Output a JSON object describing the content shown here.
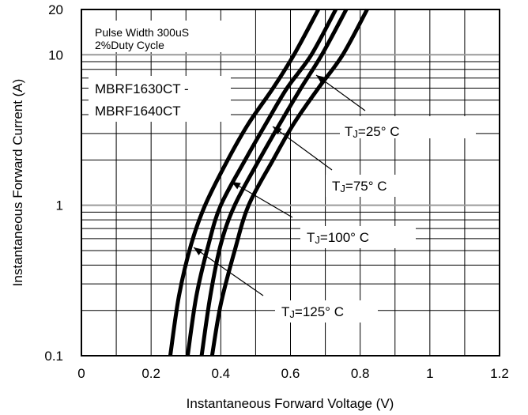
{
  "chart_data": {
    "type": "line",
    "title": "",
    "xlabel": "Instantaneous Forward Voltage (V)",
    "ylabel": "Instantaneous Forward Current (A)",
    "xlim": [
      0,
      1.2
    ],
    "ylim": [
      0.1,
      20
    ],
    "y_scale": "log",
    "grid": true,
    "x_ticks": [
      "0",
      "0.2",
      "0.4",
      "0.6",
      "0.8",
      "1",
      "1.2"
    ],
    "y_ticks": [
      "0.1",
      "1",
      "10",
      "20"
    ],
    "annotations": {
      "pulse_line1": "Pulse Width 300uS",
      "pulse_line2": "2%Duty Cycle",
      "model_line1": "MBRF1630CT -",
      "model_line2": "MBRF1640CT"
    },
    "series": [
      {
        "label_prefix": "T",
        "label_sub": "J",
        "label_suffix": "=25° C",
        "points": [
          [
            0.375,
            0.1
          ],
          [
            0.4,
            0.22
          ],
          [
            0.44,
            0.5
          ],
          [
            0.48,
            1.0
          ],
          [
            0.55,
            2.0
          ],
          [
            0.61,
            3.5
          ],
          [
            0.68,
            6.0
          ],
          [
            0.75,
            10.0
          ],
          [
            0.82,
            20.0
          ]
        ]
      },
      {
        "label_prefix": "T",
        "label_sub": "J",
        "label_suffix": "=75° C",
        "points": [
          [
            0.345,
            0.1
          ],
          [
            0.37,
            0.25
          ],
          [
            0.4,
            0.55
          ],
          [
            0.44,
            1.0
          ],
          [
            0.51,
            2.0
          ],
          [
            0.57,
            3.5
          ],
          [
            0.63,
            6.0
          ],
          [
            0.69,
            10.0
          ],
          [
            0.76,
            20.0
          ]
        ]
      },
      {
        "label_prefix": "T",
        "label_sub": "J",
        "label_suffix": "=100° C",
        "points": [
          [
            0.305,
            0.1
          ],
          [
            0.33,
            0.25
          ],
          [
            0.365,
            0.55
          ],
          [
            0.4,
            1.0
          ],
          [
            0.47,
            2.0
          ],
          [
            0.53,
            3.5
          ],
          [
            0.59,
            6.0
          ],
          [
            0.66,
            10.0
          ],
          [
            0.73,
            20.0
          ]
        ]
      },
      {
        "label_prefix": "T",
        "label_sub": "J",
        "label_suffix": "=125° C",
        "points": [
          [
            0.255,
            0.1
          ],
          [
            0.28,
            0.25
          ],
          [
            0.315,
            0.55
          ],
          [
            0.355,
            1.0
          ],
          [
            0.42,
            2.0
          ],
          [
            0.48,
            3.5
          ],
          [
            0.55,
            6.0
          ],
          [
            0.61,
            10.0
          ],
          [
            0.68,
            20.0
          ]
        ]
      }
    ]
  }
}
